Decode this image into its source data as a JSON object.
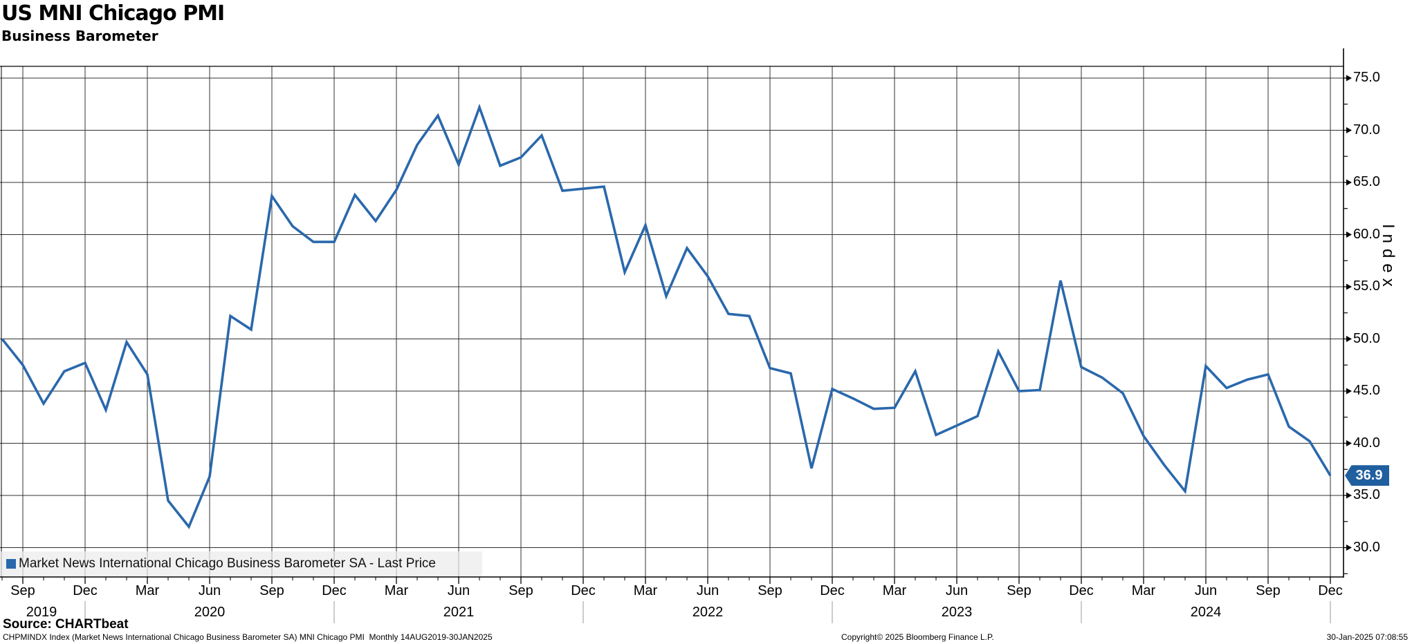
{
  "title": "US MNI Chicago PMI",
  "subtitle": "Business Barometer",
  "source_label": "Source: CHARTbeat",
  "footer": {
    "left": "CHPMINDX Index (Market News International Chicago Business Barometer SA) MNI Chicago PMI  Monthly 14AUG2019-30JAN2025",
    "center": "Copyright© 2025 Bloomberg Finance L.P.",
    "right": "30-Jan-2025 07:08:55"
  },
  "legend": {
    "marker_icon": "square-icon",
    "label": "Market News International Chicago Business Barometer SA - Last Price"
  },
  "badge": {
    "value": "36.9"
  },
  "colors": {
    "line": "#2a68ac",
    "badge_bg": "#1f5f9f",
    "grid": "#303030",
    "axis": "#000000",
    "separator": "#9a9a9a"
  },
  "y_axis": {
    "title": "Index",
    "major_values": [
      75,
      70,
      65,
      60,
      55,
      50,
      45,
      40,
      35,
      30
    ],
    "tick_labels": [
      "75.0",
      "70.0",
      "65.0",
      "60.0",
      "55.0",
      "50.0",
      "45.0",
      "40.0",
      "35.0",
      "30.0"
    ],
    "minor_step": 2.5
  },
  "x_axis": {
    "quarter_ticks": [
      {
        "m": 1,
        "label": "Sep"
      },
      {
        "m": 4,
        "label": "Dec"
      },
      {
        "m": 7,
        "label": "Mar"
      },
      {
        "m": 10,
        "label": "Jun"
      },
      {
        "m": 13,
        "label": "Sep"
      },
      {
        "m": 16,
        "label": "Dec"
      },
      {
        "m": 19,
        "label": "Mar"
      },
      {
        "m": 22,
        "label": "Jun"
      },
      {
        "m": 25,
        "label": "Sep"
      },
      {
        "m": 28,
        "label": "Dec"
      },
      {
        "m": 31,
        "label": "Mar"
      },
      {
        "m": 34,
        "label": "Jun"
      },
      {
        "m": 37,
        "label": "Sep"
      },
      {
        "m": 40,
        "label": "Dec"
      },
      {
        "m": 43,
        "label": "Mar"
      },
      {
        "m": 46,
        "label": "Jun"
      },
      {
        "m": 49,
        "label": "Sep"
      },
      {
        "m": 52,
        "label": "Dec"
      },
      {
        "m": 55,
        "label": "Mar"
      },
      {
        "m": 58,
        "label": "Jun"
      },
      {
        "m": 61,
        "label": "Sep"
      },
      {
        "m": 64,
        "label": "Dec"
      }
    ],
    "year_labels": [
      {
        "m": 1.9,
        "label": "2019"
      },
      {
        "m": 10,
        "label": "2020"
      },
      {
        "m": 22,
        "label": "2021"
      },
      {
        "m": 34,
        "label": "2022"
      },
      {
        "m": 46,
        "label": "2023"
      },
      {
        "m": 58,
        "label": "2024"
      }
    ],
    "separator_ms": [
      4,
      16,
      28,
      40,
      52,
      64
    ]
  },
  "chart_data": {
    "type": "line",
    "title": "US MNI Chicago PMI - Business Barometer",
    "series_name": "Market News International Chicago Business Barometer SA - Last Price",
    "ylabel": "Index",
    "ylim": [
      30,
      75
    ],
    "grid": true,
    "legend_position": "bottom-left",
    "last_value": 36.9,
    "x": [
      "2019-08",
      "2019-09",
      "2019-10",
      "2019-11",
      "2019-12",
      "2020-01",
      "2020-02",
      "2020-03",
      "2020-04",
      "2020-05",
      "2020-06",
      "2020-07",
      "2020-08",
      "2020-09",
      "2020-10",
      "2020-11",
      "2020-12",
      "2021-01",
      "2021-02",
      "2021-03",
      "2021-04",
      "2021-05",
      "2021-06",
      "2021-07",
      "2021-08",
      "2021-09",
      "2021-10",
      "2021-11",
      "2021-12",
      "2022-01",
      "2022-02",
      "2022-03",
      "2022-04",
      "2022-05",
      "2022-06",
      "2022-07",
      "2022-08",
      "2022-09",
      "2022-10",
      "2022-11",
      "2022-12",
      "2023-01",
      "2023-02",
      "2023-03",
      "2023-04",
      "2023-05",
      "2023-06",
      "2023-07",
      "2023-08",
      "2023-09",
      "2023-10",
      "2023-11",
      "2023-12",
      "2024-01",
      "2024-02",
      "2024-03",
      "2024-04",
      "2024-05",
      "2024-06",
      "2024-07",
      "2024-08",
      "2024-09",
      "2024-10",
      "2024-11",
      "2024-12"
    ],
    "values": [
      50.0,
      47.5,
      43.8,
      46.9,
      47.7,
      43.2,
      49.7,
      46.6,
      34.5,
      32.0,
      36.8,
      52.2,
      50.9,
      63.7,
      60.8,
      59.3,
      59.3,
      63.8,
      61.3,
      64.3,
      68.6,
      71.4,
      66.7,
      72.2,
      66.6,
      67.4,
      69.5,
      64.2,
      64.4,
      64.6,
      56.4,
      60.9,
      54.1,
      58.7,
      56.0,
      52.4,
      52.2,
      47.2,
      46.7,
      37.6,
      45.2,
      44.3,
      43.3,
      43.4,
      46.9,
      40.8,
      41.7,
      42.6,
      48.8,
      45.0,
      45.1,
      55.6,
      47.3,
      46.3,
      44.8,
      40.7,
      37.9,
      35.4,
      47.4,
      45.3,
      46.1,
      46.6,
      41.6,
      40.2,
      36.9
    ]
  }
}
